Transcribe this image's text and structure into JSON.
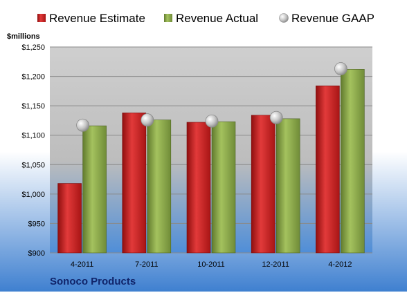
{
  "chart_data": {
    "type": "bar",
    "company": "Sonoco Products",
    "y_unit_label": "$millions",
    "categories": [
      "4-2011",
      "7-2011",
      "10-2011",
      "12-2011",
      "4-2012"
    ],
    "series": [
      {
        "name": "Revenue Estimate",
        "kind": "bar",
        "color": "#cc1f1f",
        "values": [
          1018,
          1138,
          1122,
          1134,
          1184
        ]
      },
      {
        "name": "Revenue Actual",
        "kind": "bar",
        "color": "#8aa84c",
        "values": [
          1116,
          1126,
          1123,
          1128,
          1212
        ]
      },
      {
        "name": "Revenue GAAP",
        "kind": "marker",
        "color": "#b8b8b8",
        "values": [
          1117,
          1126,
          1124,
          1130,
          1213
        ]
      }
    ],
    "ylim": [
      900,
      1250
    ],
    "y_ticks": [
      900,
      950,
      1000,
      1050,
      1100,
      1150,
      1200,
      1250
    ],
    "y_tick_labels": [
      "$900",
      "$950",
      "$1,000",
      "$1,050",
      "$1,100",
      "$1,150",
      "$1,200",
      "$1,250"
    ],
    "grid": true,
    "legend_position": "top"
  }
}
